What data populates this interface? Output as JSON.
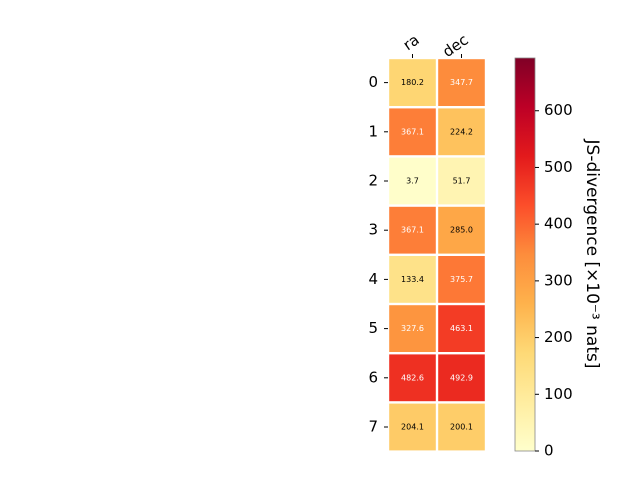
{
  "chart_data": {
    "type": "heatmap",
    "columns": [
      "ra",
      "dec"
    ],
    "rows": [
      "0",
      "1",
      "2",
      "3",
      "4",
      "5",
      "6",
      "7"
    ],
    "values": [
      [
        180.2,
        347.7
      ],
      [
        367.1,
        224.2
      ],
      [
        3.7,
        51.7
      ],
      [
        367.1,
        285.0
      ],
      [
        133.4,
        375.7
      ],
      [
        327.6,
        463.1
      ],
      [
        482.6,
        492.9
      ],
      [
        204.1,
        200.1
      ]
    ],
    "value_labels": [
      [
        "180.2",
        "347.7"
      ],
      [
        "367.1",
        "224.2"
      ],
      [
        "3.7",
        "51.7"
      ],
      [
        "367.1",
        "285.0"
      ],
      [
        "133.4",
        "375.7"
      ],
      [
        "327.6",
        "463.1"
      ],
      [
        "482.6",
        "492.9"
      ],
      [
        "204.1",
        "200.1"
      ]
    ],
    "colorbar": {
      "label": "JS-divergence [×10⁻³ nats]",
      "range": [
        0,
        693
      ],
      "ticks": [
        0,
        100,
        200,
        300,
        400,
        500,
        600
      ],
      "colormap": "YlOrRd"
    },
    "colormap_stops": [
      "#ffffcc",
      "#ffeda0",
      "#fed976",
      "#feb24c",
      "#fd8d3c",
      "#fc4e2a",
      "#e31a1c",
      "#bd0026",
      "#800026"
    ]
  }
}
